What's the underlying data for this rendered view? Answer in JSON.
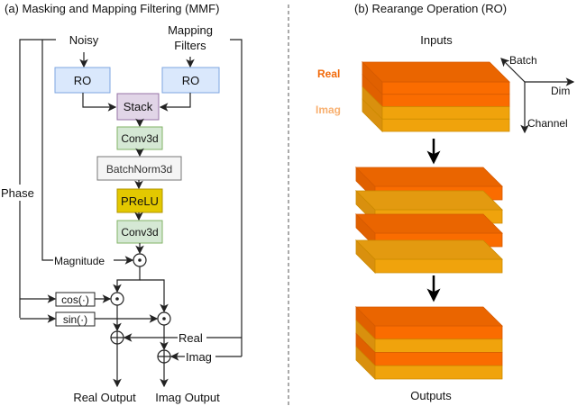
{
  "panel_a": {
    "title": "(a) Masking and Mapping Filtering (MMF)",
    "noisy": "Noisy",
    "mapping_filters_1": "Mapping",
    "mapping_filters_2": "Filters",
    "ro_left": "RO",
    "ro_right": "RO",
    "stack": "Stack",
    "conv1": "Conv3d",
    "batchnorm": "BatchNorm3d",
    "prelu": "PReLU",
    "conv2": "Conv3d",
    "phase": "Phase",
    "magnitude": "Magnitude",
    "cos": "cos(·)",
    "sin": "sin(·)",
    "real": "Real",
    "imag": "Imag",
    "real_output": "Real Output",
    "imag_output": "Imag Output"
  },
  "panel_b": {
    "title": "(b) Rearange Operation (RO)",
    "inputs": "Inputs",
    "outputs": "Outputs",
    "legend_real": "Real",
    "legend_imag": "Imag",
    "axis_batch": "Batch",
    "axis_dim": "Dim",
    "axis_channel": "Channel",
    "input_layers": [
      "real",
      "real",
      "imag",
      "imag"
    ],
    "middle_slabs": [
      "real",
      "imag",
      "real",
      "imag"
    ],
    "output_layers": [
      "real",
      "imag",
      "real",
      "imag"
    ]
  },
  "colors": {
    "real_top": "#ea6500",
    "real_front": "#fa6c00",
    "real_side": "#e06000",
    "real_stroke": "#d65a00",
    "imag_top": "#e39a10",
    "imag_front": "#f0a30c",
    "imag_side": "#d9900e",
    "imag_stroke": "#cc8a00",
    "legend_real": "#f26a0a",
    "legend_imag": "#f8b070"
  }
}
